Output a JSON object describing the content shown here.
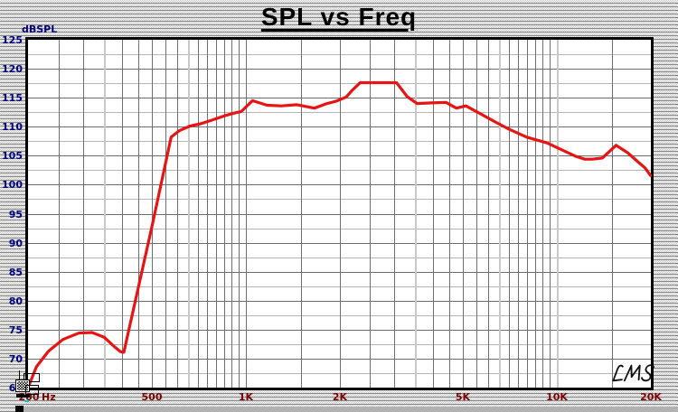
{
  "window": {
    "title": "SPL vs Freq"
  },
  "logo": {
    "text": "LMS"
  },
  "colors": {
    "curve": "#e81313",
    "y_label": "#000082",
    "x_label": "#7e0000",
    "grid_major": "#6e6e6e",
    "grid_minor": "#b4b4b4",
    "grid_emphasis": "#c8c8c8",
    "frame": "#000000"
  },
  "chart_data": {
    "type": "line",
    "title": "SPL vs Freq",
    "ylabel": "dBSPL",
    "x_unit_label": "Hz",
    "x_scale": "log",
    "xlim": [
      200,
      20000
    ],
    "ylim": [
      65,
      125
    ],
    "y_ticks": [
      125,
      120,
      115,
      110,
      105,
      100,
      95,
      90,
      85,
      80,
      75,
      70,
      65
    ],
    "x_ticks": [
      {
        "value": 200,
        "label": "200"
      },
      {
        "value": 500,
        "label": "500"
      },
      {
        "value": 1000,
        "label": "1K"
      },
      {
        "value": 2000,
        "label": "2K"
      },
      {
        "value": 5000,
        "label": "5K"
      },
      {
        "value": 10000,
        "label": "10K"
      },
      {
        "value": 20000,
        "label": "20K"
      }
    ],
    "grid": {
      "y_major_step": 5,
      "y_minor_step": 2.5,
      "x_mantissas": [
        1,
        1.5,
        2,
        2.5,
        3,
        3.5,
        4,
        4.5,
        5,
        5.5,
        6,
        6.5,
        7,
        7.5,
        8,
        8.5,
        9,
        9.5
      ],
      "x_emphasis": [
        350,
        650,
        3500,
        6500,
        10000
      ]
    },
    "series": [
      {
        "name": "SPL",
        "color": "#e81313",
        "points": [
          [
            200,
            65.2
          ],
          [
            212,
            68.6
          ],
          [
            232,
            71.3
          ],
          [
            258,
            73.3
          ],
          [
            290,
            74.4
          ],
          [
            320,
            74.5
          ],
          [
            350,
            73.7
          ],
          [
            375,
            72.2
          ],
          [
            395,
            71.2
          ],
          [
            405,
            71.1
          ],
          [
            500,
            93.0
          ],
          [
            575,
            108.2
          ],
          [
            610,
            109.3
          ],
          [
            660,
            110.1
          ],
          [
            715,
            110.5
          ],
          [
            785,
            111.2
          ],
          [
            855,
            111.9
          ],
          [
            925,
            112.4
          ],
          [
            965,
            112.6
          ],
          [
            1050,
            114.5
          ],
          [
            1170,
            113.7
          ],
          [
            1300,
            113.6
          ],
          [
            1460,
            113.8
          ],
          [
            1660,
            113.2
          ],
          [
            1800,
            113.9
          ],
          [
            1950,
            114.4
          ],
          [
            2100,
            115.1
          ],
          [
            2200,
            116.3
          ],
          [
            2330,
            117.6
          ],
          [
            3050,
            117.6
          ],
          [
            3300,
            115.2
          ],
          [
            3550,
            114.0
          ],
          [
            3950,
            114.1
          ],
          [
            4400,
            114.2
          ],
          [
            4750,
            113.2
          ],
          [
            5100,
            113.6
          ],
          [
            5600,
            112.4
          ],
          [
            6300,
            110.9
          ],
          [
            7000,
            109.6
          ],
          [
            8000,
            108.2
          ],
          [
            9300,
            107.2
          ],
          [
            10000,
            106.4
          ],
          [
            11500,
            104.9
          ],
          [
            12300,
            104.4
          ],
          [
            13000,
            104.4
          ],
          [
            14000,
            104.6
          ],
          [
            15500,
            106.8
          ],
          [
            16900,
            105.5
          ],
          [
            18000,
            104.2
          ],
          [
            19200,
            102.9
          ],
          [
            20000,
            101.6
          ]
        ]
      }
    ]
  }
}
